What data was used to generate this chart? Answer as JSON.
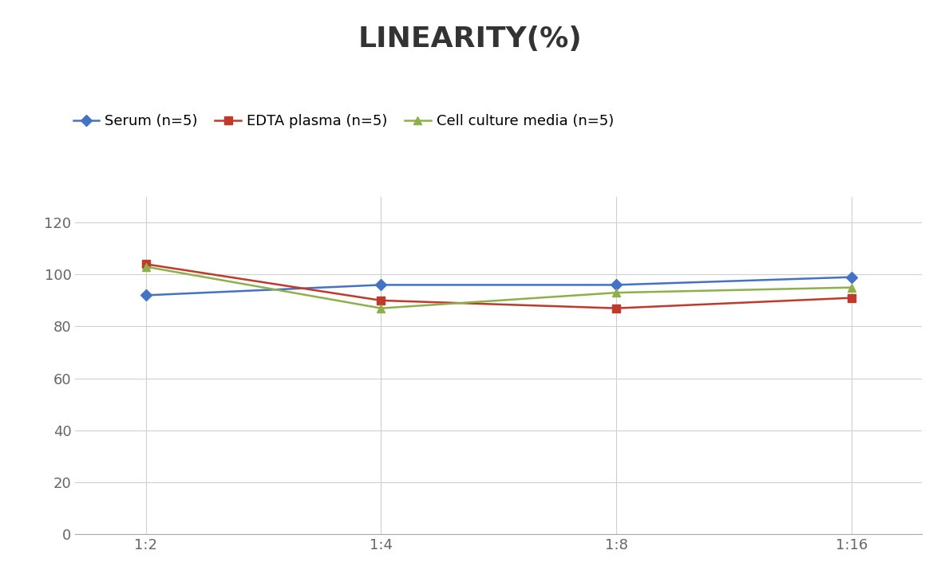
{
  "title": "LINEARITY(%)",
  "x_labels": [
    "1:2",
    "1:4",
    "1:8",
    "1:16"
  ],
  "series": [
    {
      "label": "Serum (n=5)",
      "values": [
        92,
        96,
        96,
        99
      ],
      "color": "#4472C4",
      "marker": "D",
      "markersize": 7
    },
    {
      "label": "EDTA plasma (n=5)",
      "values": [
        104,
        90,
        87,
        91
      ],
      "color": "#C0392B",
      "marker": "s",
      "markersize": 7
    },
    {
      "label": "Cell culture media (n=5)",
      "values": [
        103,
        87,
        93,
        95
      ],
      "color": "#8DB04A",
      "marker": "^",
      "markersize": 7
    }
  ],
  "ylim": [
    0,
    130
  ],
  "yticks": [
    0,
    20,
    40,
    60,
    80,
    100,
    120
  ],
  "title_fontsize": 26,
  "legend_fontsize": 13,
  "tick_fontsize": 13,
  "background_color": "#ffffff",
  "grid_color": "#d0d0d0"
}
